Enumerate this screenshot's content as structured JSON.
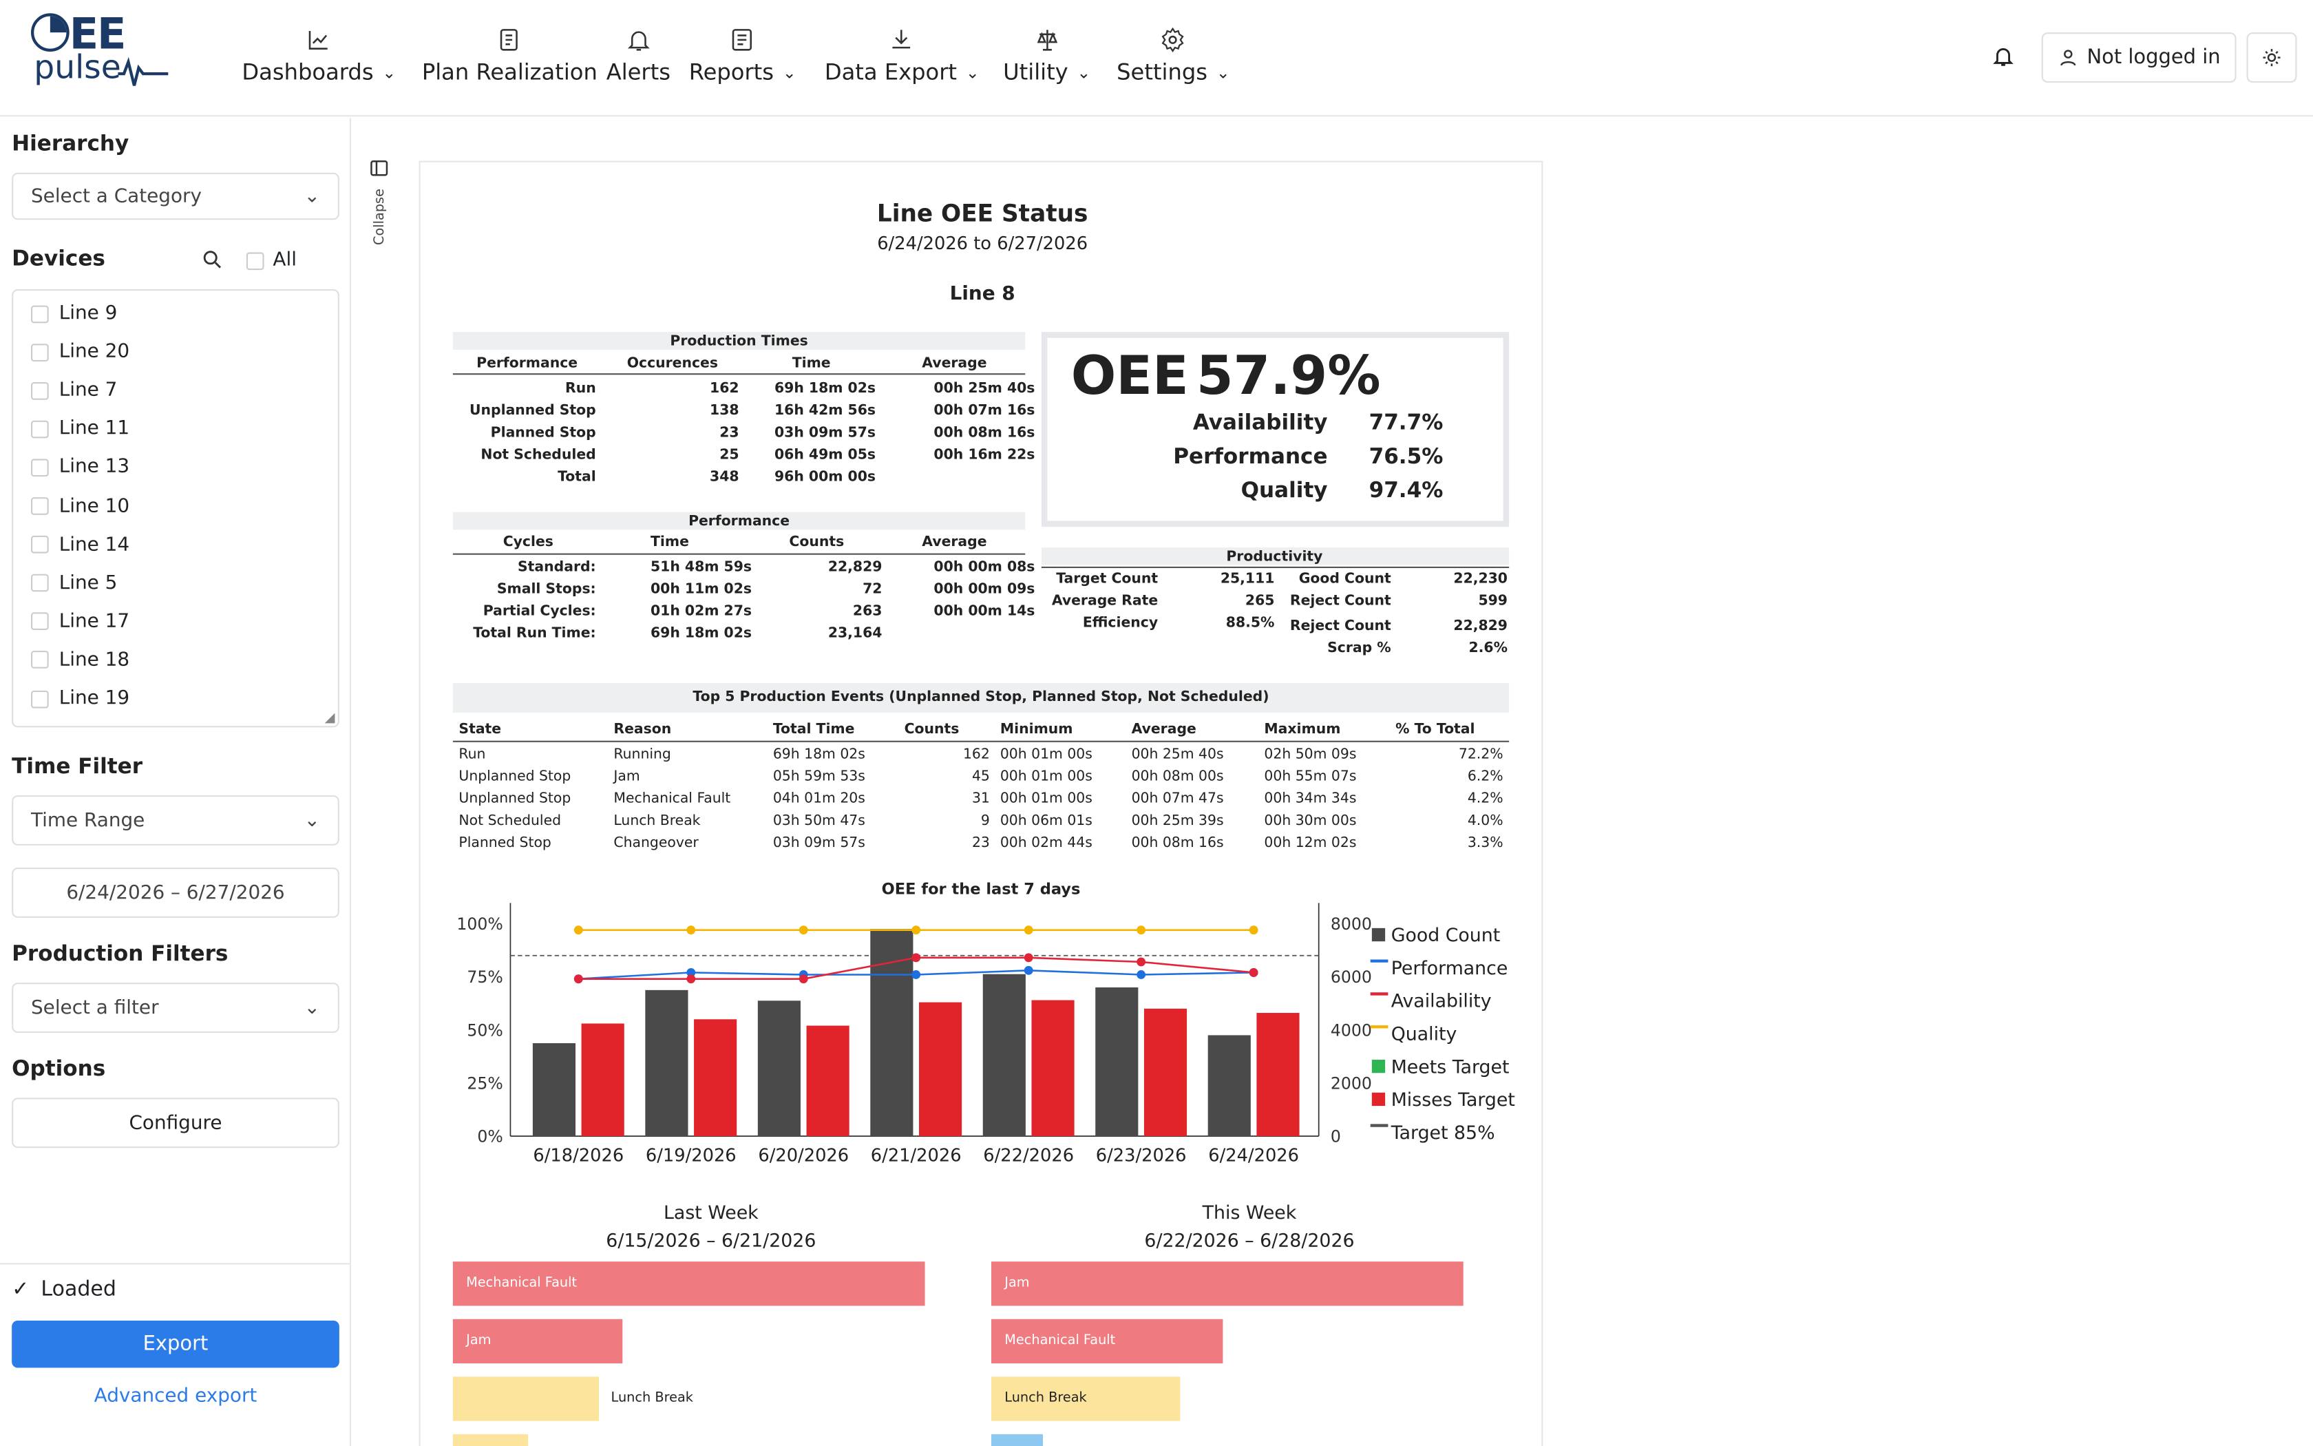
{
  "app": {
    "logo_text_1": "EE",
    "logo_text_2": "pulse",
    "accent": "#2b7be8"
  },
  "nav": [
    {
      "label": "Dashboards",
      "icon": "line-chart-icon",
      "caret": true
    },
    {
      "label": "Plan Realization",
      "icon": "document-icon",
      "caret": false
    },
    {
      "label": "Alerts",
      "icon": "bell-icon",
      "caret": false
    },
    {
      "label": "Reports",
      "icon": "report-icon",
      "caret": true
    },
    {
      "label": "Data Export",
      "icon": "download-icon",
      "caret": true
    },
    {
      "label": "Utility",
      "icon": "scale-icon",
      "caret": true
    },
    {
      "label": "Settings",
      "icon": "gear-icon",
      "caret": true
    }
  ],
  "header_right": {
    "login_label": "Not logged in"
  },
  "sidebar": {
    "hierarchy_title": "Hierarchy",
    "hierarchy_placeholder": "Select a Category",
    "devices_title": "Devices",
    "all_label": "All",
    "devices": [
      "Line 9",
      "Line 20",
      "Line 7",
      "Line 11",
      "Line 13",
      "Line 10",
      "Line 14",
      "Line 5",
      "Line 17",
      "Line 18",
      "Line 19"
    ],
    "time_filter_title": "Time Filter",
    "time_filter_value": "Time Range",
    "date_range": "6/24/2026 – 6/27/2026",
    "production_filters_title": "Production Filters",
    "production_filter_placeholder": "Select a filter",
    "options_title": "Options",
    "configure_label": "Configure",
    "status_label": "Loaded",
    "export_label": "Export",
    "advanced_export_label": "Advanced export",
    "collapse_label": "Collapse"
  },
  "report": {
    "title": "Line OEE Status",
    "date_range": "6/24/2026 to 6/27/2026",
    "line_name": "Line 8",
    "production_times": {
      "title": "Production Times",
      "headers": [
        "Performance",
        "Occurences",
        "Time",
        "Average"
      ],
      "rows": [
        [
          "Run",
          "162",
          "69h 18m 02s",
          "00h 25m 40s"
        ],
        [
          "Unplanned Stop",
          "138",
          "16h 42m 56s",
          "00h 07m 16s"
        ],
        [
          "Planned Stop",
          "23",
          "03h 09m 57s",
          "00h 08m 16s"
        ],
        [
          "Not Scheduled",
          "25",
          "06h 49m 05s",
          "00h 16m 22s"
        ],
        [
          "Total",
          "348",
          "96h 00m 00s",
          ""
        ]
      ]
    },
    "oee": {
      "label": "OEE",
      "value": "57.9%",
      "rows": [
        [
          "Availability",
          "77.7%"
        ],
        [
          "Performance",
          "76.5%"
        ],
        [
          "Quality",
          "97.4%"
        ]
      ]
    },
    "performance": {
      "title": "Performance",
      "headers": [
        "Cycles",
        "Time",
        "Counts",
        "Average"
      ],
      "rows": [
        [
          "Standard:",
          "51h 48m 59s",
          "22,829",
          "00h 00m 08s"
        ],
        [
          "Small Stops:",
          "00h 11m 02s",
          "72",
          "00h 00m 09s"
        ],
        [
          "Partial Cycles:",
          "01h 02m 27s",
          "263",
          "00h 00m 14s"
        ],
        [
          "Total Run Time:",
          "69h 18m 02s",
          "23,164",
          ""
        ]
      ]
    },
    "productivity": {
      "title": "Productivity",
      "left": [
        [
          "Target Count",
          "25,111"
        ],
        [
          "Average Rate",
          "265"
        ],
        [
          "Efficiency",
          "88.5%"
        ]
      ],
      "right": [
        [
          "Good Count",
          "22,230"
        ],
        [
          "Reject Count",
          "599"
        ],
        [
          "Reject Count",
          "22,829"
        ],
        [
          "Scrap %",
          "2.6%"
        ]
      ]
    },
    "events": {
      "title": "Top 5 Production Events (Unplanned Stop, Planned Stop, Not Scheduled)",
      "headers": [
        "State",
        "Reason",
        "Total Time",
        "Counts",
        "Minimum",
        "Average",
        "Maximum",
        "% To Total"
      ],
      "rows": [
        [
          "Run",
          "Running",
          "69h 18m 02s",
          "162",
          "00h 01m 00s",
          "00h 25m 40s",
          "02h 50m 09s",
          "72.2%"
        ],
        [
          "Unplanned Stop",
          "Jam",
          "05h 59m 53s",
          "45",
          "00h 01m 00s",
          "00h 08m 00s",
          "00h 55m 07s",
          "6.2%"
        ],
        [
          "Unplanned Stop",
          "Mechanical Fault",
          "04h 01m 20s",
          "31",
          "00h 01m 00s",
          "00h 07m 47s",
          "00h 34m 34s",
          "4.2%"
        ],
        [
          "Not Scheduled",
          "Lunch Break",
          "03h 50m 47s",
          "9",
          "00h 06m 01s",
          "00h 25m 39s",
          "00h 30m 00s",
          "4.0%"
        ],
        [
          "Planned Stop",
          "Changeover",
          "03h 09m 57s",
          "23",
          "00h 02m 44s",
          "00h 08m 16s",
          "00h 12m 02s",
          "3.3%"
        ]
      ]
    },
    "weeks": {
      "last_title": "Last Week",
      "last_range": "6/15/2026 – 6/21/2026",
      "this_title": "This Week",
      "this_range": "6/22/2026 – 6/28/2026",
      "last_bars": [
        {
          "label": "Mechanical Fault",
          "value": 1.0,
          "color": "#ef7b80",
          "inside": true
        },
        {
          "label": "Jam",
          "value": 0.36,
          "color": "#ef7b80",
          "inside": true
        },
        {
          "label": "Lunch Break",
          "value": 0.31,
          "color": "#fde49c",
          "inside": false
        },
        {
          "label": "",
          "value": 0.16,
          "color": "#fde49c",
          "inside": false
        }
      ],
      "this_bars": [
        {
          "label": "Jam",
          "value": 1.0,
          "color": "#ef7b80",
          "inside": true
        },
        {
          "label": "Mechanical Fault",
          "value": 0.49,
          "color": "#ef7b80",
          "inside": true
        },
        {
          "label": "Lunch Break",
          "value": 0.4,
          "color": "#fde49c",
          "inside": true
        },
        {
          "label": "",
          "value": 0.11,
          "color": "#8cc8f0",
          "inside": false
        }
      ]
    }
  },
  "chart_data": {
    "type": "bar",
    "title": "OEE for the last 7 days",
    "categories": [
      "6/18/2026",
      "6/19/2026",
      "6/20/2026",
      "6/21/2026",
      "6/22/2026",
      "6/23/2026",
      "6/24/2026"
    ],
    "y_left_ticks": [
      "0%",
      "25%",
      "50%",
      "75%",
      "100%"
    ],
    "y_right_ticks": [
      "0",
      "2000",
      "4000",
      "6000",
      "8000"
    ],
    "ylim_left": [
      0,
      100
    ],
    "ylim_right": [
      0,
      8000
    ],
    "target": 85,
    "series": [
      {
        "name": "Good Count",
        "type": "bar",
        "axis": "right",
        "color": "#4a4a4a",
        "values": [
          3500,
          5500,
          5100,
          7800,
          6100,
          5600,
          3800
        ]
      },
      {
        "name": "Misses Target",
        "type": "bar",
        "axis": "left",
        "color": "#e0242a",
        "values": [
          53,
          55,
          52,
          63,
          64,
          60,
          58
        ]
      },
      {
        "name": "Performance",
        "type": "line",
        "axis": "left",
        "color": "#1e6fe0",
        "values": [
          74,
          77,
          76,
          76,
          78,
          76,
          77
        ]
      },
      {
        "name": "Availability",
        "type": "line",
        "axis": "left",
        "color": "#e0243a",
        "values": [
          74,
          74,
          74,
          84,
          84,
          82,
          77
        ]
      },
      {
        "name": "Quality",
        "type": "line",
        "axis": "left",
        "color": "#f5b400",
        "values": [
          97,
          97,
          97,
          97,
          97,
          97,
          97
        ]
      }
    ],
    "legend": [
      {
        "name": "Good Count",
        "color": "#4a4a4a",
        "marker": "square"
      },
      {
        "name": "Performance",
        "color": "#1e6fe0",
        "marker": "line"
      },
      {
        "name": "Availability",
        "color": "#e0243a",
        "marker": "line"
      },
      {
        "name": "Quality",
        "color": "#f5b400",
        "marker": "line"
      },
      {
        "name": "Meets Target",
        "color": "#2fb551",
        "marker": "square"
      },
      {
        "name": "Misses Target",
        "color": "#e0242a",
        "marker": "square"
      },
      {
        "name": "Target 85%",
        "color": "#555555",
        "marker": "line"
      }
    ],
    "legend_position": "right"
  }
}
